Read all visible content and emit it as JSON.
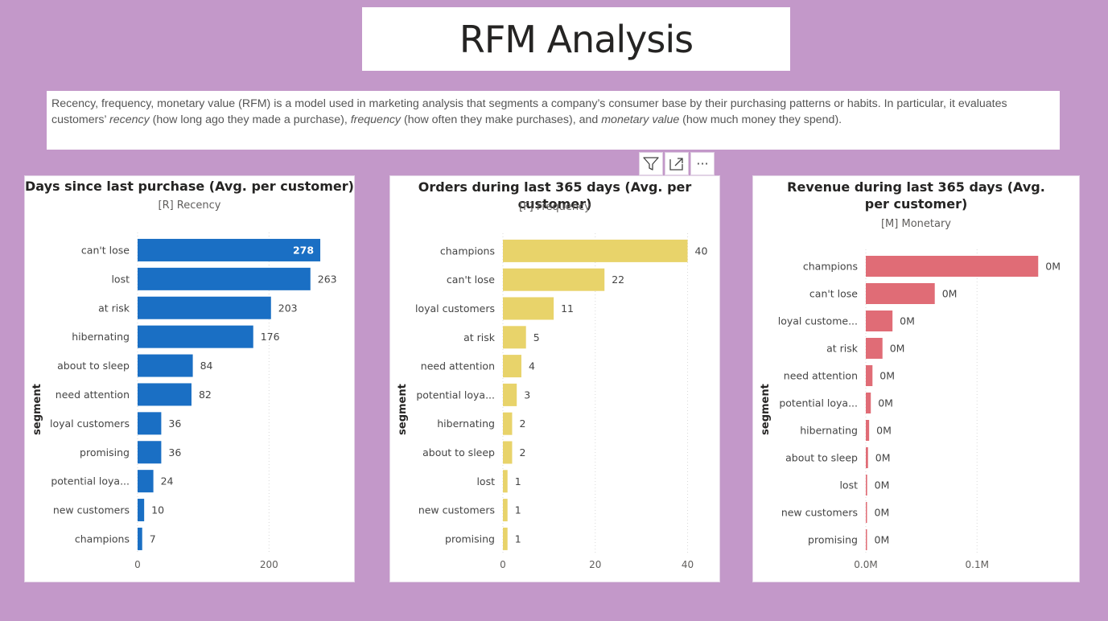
{
  "header": {
    "title": "RFM Analysis"
  },
  "description": {
    "p1": "Recency, frequency, monetary value (RFM) is a model used in marketing analysis that segments a company’s consumer base by their purchasing patterns or habits. In particular, it evaluates customers’ ",
    "em1": "recency",
    "p2": " (how long ago they made a purchase), ",
    "em2": "frequency",
    "p3": " (how often they make purchases), and ",
    "em3": "monetary value",
    "p4": " (how much money they spend)."
  },
  "toolbar": {
    "filter_icon": "filter-icon",
    "focus_icon": "focus-mode-icon",
    "more_icon": "more-options-icon",
    "more_label": "···"
  },
  "colors": {
    "background": "#c398c9",
    "recency": "#1a6fc4",
    "frequency": "#e8d36a",
    "monetary": "#e06c76"
  },
  "chart_data": [
    {
      "type": "bar",
      "orientation": "horizontal",
      "title": "Days since last purchase (Avg. per customer)",
      "subtitle": "[R] Recency",
      "ylabel": "segment",
      "categories": [
        "can't lose",
        "lost",
        "at risk",
        "hibernating",
        "about to sleep",
        "need attention",
        "loyal customers",
        "promising",
        "potential loya...",
        "new customers",
        "champions"
      ],
      "values": [
        278,
        263,
        203,
        176,
        84,
        82,
        36,
        36,
        24,
        10,
        7
      ],
      "labels": [
        "278",
        "263",
        "203",
        "176",
        "84",
        "82",
        "36",
        "36",
        "24",
        "10",
        "7"
      ],
      "xlim": [
        0,
        300
      ],
      "xticks": [
        0,
        200
      ],
      "xtick_labels": [
        "0",
        "200"
      ],
      "color": "#1a6fc4",
      "grid": true
    },
    {
      "type": "bar",
      "orientation": "horizontal",
      "title": "Orders during last 365 days (Avg. per customer)",
      "subtitle": "[F] Frequency",
      "ylabel": "segment",
      "categories": [
        "champions",
        "can't lose",
        "loyal customers",
        "at risk",
        "need attention",
        "potential loya...",
        "hibernating",
        "about to sleep",
        "lost",
        "new customers",
        "promising"
      ],
      "values": [
        40,
        22,
        11,
        5,
        4,
        3,
        2,
        2,
        1,
        1,
        1
      ],
      "labels": [
        "40",
        "22",
        "11",
        "5",
        "4",
        "3",
        "2",
        "2",
        "1",
        "1",
        "1"
      ],
      "xlim": [
        0,
        42
      ],
      "xticks": [
        0,
        20,
        40
      ],
      "xtick_labels": [
        "0",
        "20",
        "40"
      ],
      "color": "#e8d36a",
      "grid": true
    },
    {
      "type": "bar",
      "orientation": "horizontal",
      "title": "Revenue during last 365 days (Avg. per customer)",
      "subtitle": "[M] Monetary",
      "ylabel": "segment",
      "categories": [
        "champions",
        "can't lose",
        "loyal custome...",
        "at risk",
        "need attention",
        "potential loya...",
        "hibernating",
        "about to sleep",
        "lost",
        "new customers",
        "promising"
      ],
      "values": [
        0.155,
        0.062,
        0.024,
        0.015,
        0.006,
        0.0045,
        0.003,
        0.002,
        0.0012,
        0.0008,
        0.0006
      ],
      "labels": [
        "0M",
        "0M",
        "0M",
        "0M",
        "0M",
        "0M",
        "0M",
        "0M",
        "0M",
        "0M",
        "0M"
      ],
      "xlim": [
        0,
        0.17
      ],
      "xticks": [
        0,
        0.1
      ],
      "xtick_labels": [
        "0.0M",
        "0.1M"
      ],
      "unit": "M",
      "color": "#e06c76",
      "grid": true
    }
  ]
}
